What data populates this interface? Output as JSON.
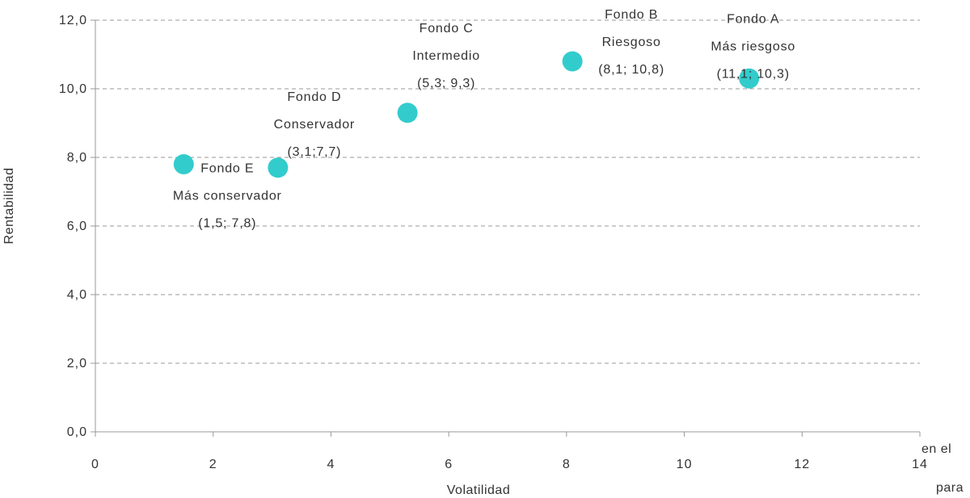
{
  "chart_data": {
    "type": "scatter",
    "title": "",
    "xlabel": "Volatilidad",
    "ylabel": "Rentabilidad",
    "xlim": [
      0,
      14
    ],
    "ylim": [
      0,
      12
    ],
    "x_ticks": [
      "0",
      "2",
      "4",
      "6",
      "8",
      "10",
      "12",
      "14"
    ],
    "y_ticks": [
      "0,0",
      "2,0",
      "4,0",
      "6,0",
      "8,0",
      "10,0",
      "12,0"
    ],
    "grid": "horizontal dashed",
    "legend": "none",
    "marker_color": "#33CCCC",
    "points": [
      {
        "x": 11.1,
        "y": 10.3,
        "label": [
          "Fondo A",
          "Más riesgoso",
          "(11,1; 10,3)"
        ]
      },
      {
        "x": 8.1,
        "y": 10.8,
        "label": [
          "Fondo B",
          "Riesgoso",
          "(8,1; 10,8)"
        ]
      },
      {
        "x": 5.3,
        "y": 9.3,
        "label": [
          "Fondo C",
          "Intermedio",
          "(5,3; 9,3)"
        ]
      },
      {
        "x": 3.1,
        "y": 7.7,
        "label": [
          "Fondo D",
          "Conservador",
          "(3,1;7,7)"
        ]
      },
      {
        "x": 1.5,
        "y": 7.8,
        "label": [
          "Fondo E",
          "Más conservador",
          "(1,5; 7,8)"
        ]
      }
    ]
  },
  "page_fragments": {
    "right_line_1": "en el",
    "right_line_2": "para"
  }
}
